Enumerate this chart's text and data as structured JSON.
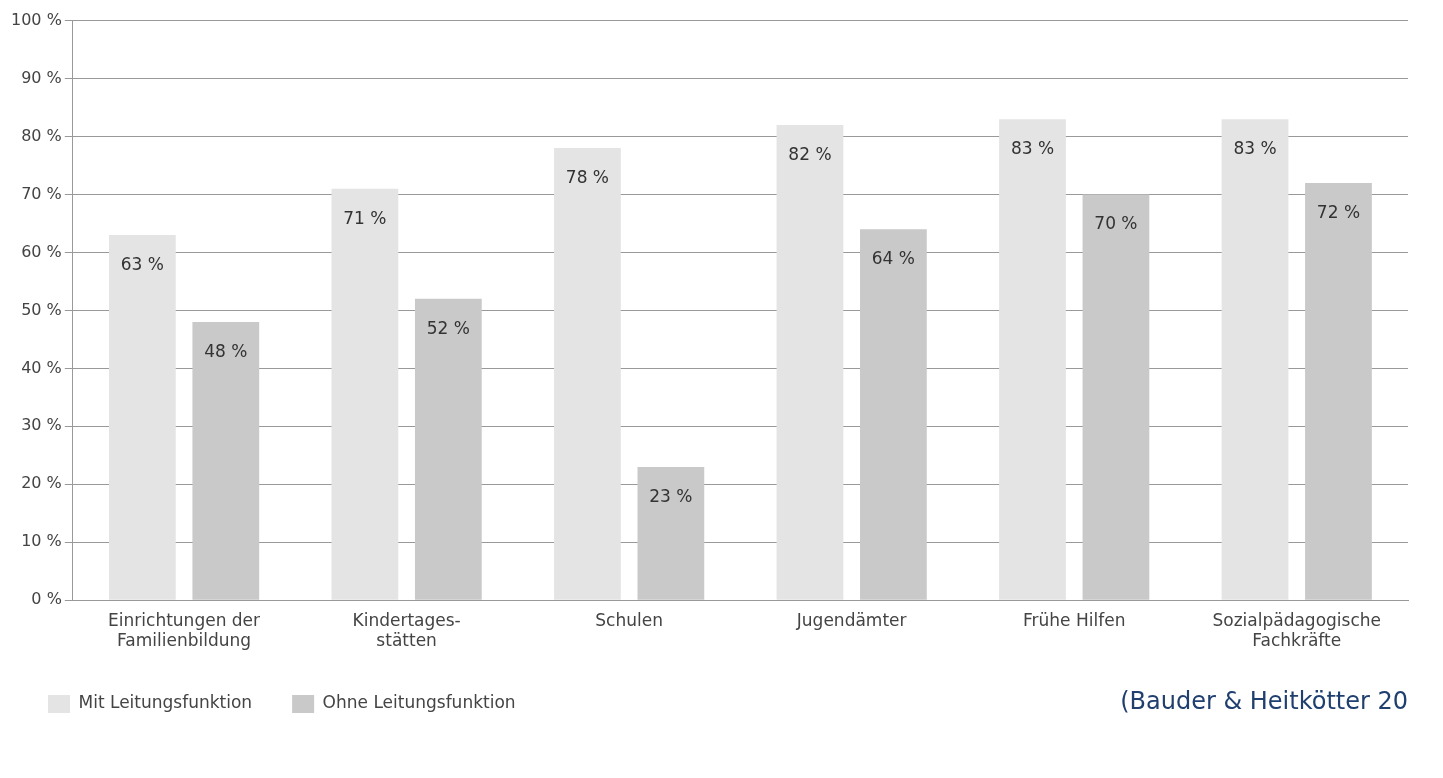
{
  "chart_data": {
    "type": "bar",
    "categories": [
      "Einrichtungen der\nFamilienbildung",
      "Kindertages-\nstätten",
      "Schulen",
      "Jugendämter",
      "Frühe Hilfen",
      "Sozialpädagogische\nFachkräfte"
    ],
    "series": [
      {
        "name": "Mit Leitungsfunktion",
        "color": "#e4e4e4",
        "values": [
          63,
          71,
          78,
          82,
          83,
          83
        ],
        "value_labels": [
          "63 %",
          "71 %",
          "78 %",
          "82 %",
          "83 %",
          "83 %"
        ]
      },
      {
        "name": "Ohne Leitungsfunktion",
        "color": "#c9c9c9",
        "values": [
          48,
          52,
          23,
          64,
          70,
          72
        ],
        "value_labels": [
          "48 %",
          "52 %",
          "23 %",
          "64 %",
          "70 %",
          "72 %"
        ]
      }
    ],
    "ylim": [
      0,
      100
    ],
    "yticks": [
      {
        "value": 0,
        "label": "0 %"
      },
      {
        "value": 10,
        "label": "10 %"
      },
      {
        "value": 20,
        "label": "20 %"
      },
      {
        "value": 30,
        "label": "30 %"
      },
      {
        "value": 40,
        "label": "40 %"
      },
      {
        "value": 50,
        "label": "50 %"
      },
      {
        "value": 60,
        "label": "60 %"
      },
      {
        "value": 70,
        "label": "70 %"
      },
      {
        "value": 80,
        "label": "80 %"
      },
      {
        "value": 90,
        "label": "90 %"
      },
      {
        "value": 100,
        "label": "100 %"
      }
    ],
    "grid": "y",
    "legend": "bottom left",
    "annotations": [
      "(Bauder & Heitkötter 20"
    ]
  }
}
